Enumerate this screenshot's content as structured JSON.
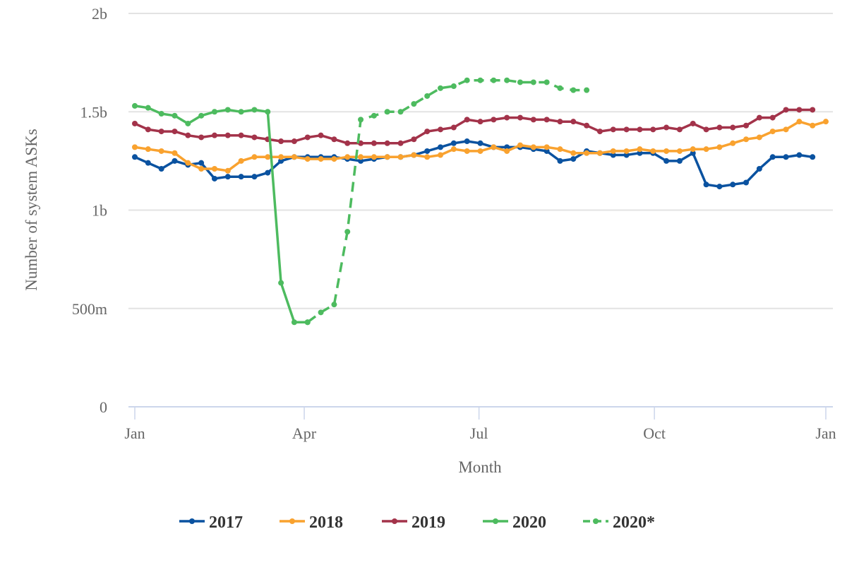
{
  "chart_data": {
    "type": "line",
    "title": "",
    "xlabel": "Month",
    "ylabel": "Number of system ASKs",
    "x_unit": "week of year",
    "xlim": [
      0,
      52
    ],
    "ylim": [
      0,
      2
    ],
    "y_unit": "billions",
    "grid": true,
    "legend_position": "bottom",
    "y_ticks": [
      {
        "value": 0,
        "label": "0"
      },
      {
        "value": 0.5,
        "label": "500m"
      },
      {
        "value": 1,
        "label": "1b"
      },
      {
        "value": 1.5,
        "label": "1.5b"
      },
      {
        "value": 2,
        "label": "2b"
      }
    ],
    "x_ticks": [
      {
        "value": 0,
        "label": "Jan"
      },
      {
        "value": 12.75,
        "label": "Apr"
      },
      {
        "value": 25.9,
        "label": "Jul"
      },
      {
        "value": 39.1,
        "label": "Oct"
      },
      {
        "value": 52,
        "label": "Jan"
      }
    ],
    "series": [
      {
        "name": "2017",
        "color": "#0a52a0",
        "dashed": false,
        "x_start": 0,
        "values": [
          1.27,
          1.24,
          1.21,
          1.25,
          1.23,
          1.24,
          1.16,
          1.17,
          1.17,
          1.17,
          1.19,
          1.25,
          1.27,
          1.27,
          1.27,
          1.27,
          1.26,
          1.25,
          1.26,
          1.27,
          1.27,
          1.28,
          1.3,
          1.32,
          1.34,
          1.35,
          1.34,
          1.32,
          1.32,
          1.32,
          1.31,
          1.3,
          1.25,
          1.26,
          1.3,
          1.29,
          1.28,
          1.28,
          1.29,
          1.29,
          1.25,
          1.25,
          1.29,
          1.13,
          1.12,
          1.13,
          1.14,
          1.21,
          1.27,
          1.27,
          1.28,
          1.27
        ]
      },
      {
        "name": "2018",
        "color": "#f9a22f",
        "dashed": false,
        "x_start": 0,
        "values": [
          1.32,
          1.31,
          1.3,
          1.29,
          1.24,
          1.21,
          1.21,
          1.2,
          1.25,
          1.27,
          1.27,
          1.27,
          1.27,
          1.26,
          1.26,
          1.26,
          1.27,
          1.27,
          1.27,
          1.27,
          1.27,
          1.28,
          1.27,
          1.28,
          1.31,
          1.3,
          1.3,
          1.32,
          1.3,
          1.33,
          1.32,
          1.32,
          1.31,
          1.29,
          1.29,
          1.29,
          1.3,
          1.3,
          1.31,
          1.3,
          1.3,
          1.3,
          1.31,
          1.31,
          1.32,
          1.34,
          1.36,
          1.37,
          1.4,
          1.41,
          1.45,
          1.43,
          1.45
        ]
      },
      {
        "name": "2019",
        "color": "#a3334a",
        "dashed": false,
        "x_start": 0,
        "values": [
          1.44,
          1.41,
          1.4,
          1.4,
          1.38,
          1.37,
          1.38,
          1.38,
          1.38,
          1.37,
          1.36,
          1.35,
          1.35,
          1.37,
          1.38,
          1.36,
          1.34,
          1.34,
          1.34,
          1.34,
          1.34,
          1.36,
          1.4,
          1.41,
          1.42,
          1.46,
          1.45,
          1.46,
          1.47,
          1.47,
          1.46,
          1.46,
          1.45,
          1.45,
          1.43,
          1.4,
          1.41,
          1.41,
          1.41,
          1.41,
          1.42,
          1.41,
          1.44,
          1.41,
          1.42,
          1.42,
          1.43,
          1.47,
          1.47,
          1.51,
          1.51,
          1.51
        ]
      },
      {
        "name": "2020",
        "color": "#4dbb5f",
        "dashed": false,
        "x_start": 0,
        "values": [
          1.53,
          1.52,
          1.49,
          1.48,
          1.44,
          1.48,
          1.5,
          1.51,
          1.5,
          1.51,
          1.5,
          0.63,
          0.43,
          0.43
        ]
      },
      {
        "name": "2020*",
        "color": "#4dbb5f",
        "dashed": true,
        "x_start": 13,
        "values": [
          0.43,
          0.48,
          0.52,
          0.89,
          1.46,
          1.48,
          1.5,
          1.5,
          1.54,
          1.58,
          1.62,
          1.63,
          1.66,
          1.66,
          1.66,
          1.66,
          1.65,
          1.65,
          1.65,
          1.62,
          1.61,
          1.61
        ]
      }
    ]
  }
}
